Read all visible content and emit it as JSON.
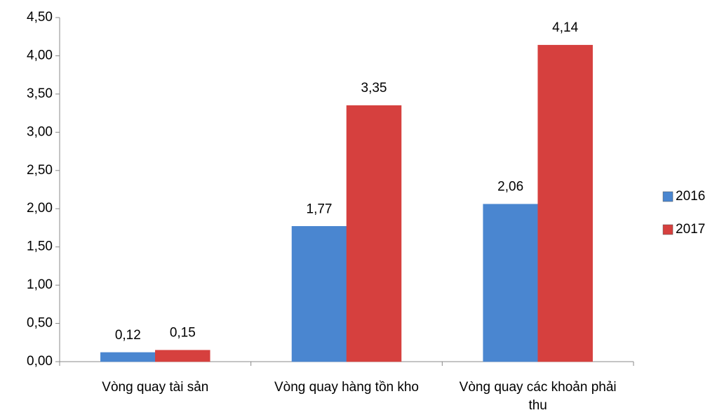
{
  "chart_data": {
    "type": "bar",
    "categories": [
      "Vòng quay tài sản",
      "Vòng quay hàng tồn kho",
      "Vòng quay các khoản phải thu"
    ],
    "series": [
      {
        "name": "2016",
        "color": "#4a86d0",
        "values": [
          0.12,
          1.77,
          2.06
        ],
        "value_labels": [
          "0,12",
          "1,77",
          "2,06"
        ]
      },
      {
        "name": "2017",
        "color": "#d6403e",
        "values": [
          0.15,
          3.35,
          4.14
        ],
        "value_labels": [
          "0,15",
          "3,35",
          "4,14"
        ]
      }
    ],
    "ylim": [
      0,
      4.5
    ],
    "yticks": [
      {
        "value": 0,
        "label": "0,00"
      },
      {
        "value": 0.5,
        "label": "0,50"
      },
      {
        "value": 1,
        "label": "1,00"
      },
      {
        "value": 1.5,
        "label": "1,50"
      },
      {
        "value": 2,
        "label": "2,00"
      },
      {
        "value": 2.5,
        "label": "2,50"
      },
      {
        "value": 3,
        "label": "3,00"
      },
      {
        "value": 3.5,
        "label": "3,50"
      },
      {
        "value": 4,
        "label": "4,00"
      },
      {
        "value": 4.5,
        "label": "4,50"
      }
    ],
    "grid": false,
    "legend": "right"
  }
}
